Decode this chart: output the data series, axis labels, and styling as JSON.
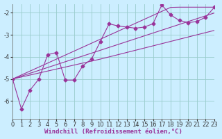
{
  "xlabel": "Windchill (Refroidissement éolien,°C)",
  "background_color": "#cceeff",
  "line_color": "#993399",
  "grid_color": "#99cccc",
  "x_data": [
    0,
    1,
    2,
    3,
    4,
    5,
    6,
    7,
    8,
    9,
    10,
    11,
    12,
    13,
    14,
    15,
    16,
    17,
    18,
    19,
    20,
    21,
    22,
    23
  ],
  "y_scatter": [
    -5.0,
    -6.35,
    -5.5,
    -5.0,
    -3.9,
    -3.8,
    -5.05,
    -5.05,
    -4.4,
    -4.1,
    -3.3,
    -2.5,
    -2.6,
    -2.65,
    -2.7,
    -2.65,
    -2.5,
    -1.65,
    -2.1,
    -2.35,
    -2.45,
    -2.4,
    -2.2,
    -1.75
  ],
  "y_line1": [
    -5.0,
    -4.82,
    -4.64,
    -4.46,
    -4.28,
    -4.1,
    -3.92,
    -3.74,
    -3.56,
    -3.38,
    -3.2,
    -3.02,
    -2.84,
    -2.66,
    -2.48,
    -2.3,
    -2.12,
    -1.94,
    -1.76,
    -1.75,
    -1.75,
    -1.75,
    -1.75,
    -1.75
  ],
  "y_line2": [
    -5.0,
    -4.87,
    -4.74,
    -4.61,
    -4.48,
    -4.35,
    -4.22,
    -4.09,
    -3.96,
    -3.83,
    -3.7,
    -3.57,
    -3.44,
    -3.31,
    -3.18,
    -3.05,
    -2.92,
    -2.79,
    -2.66,
    -2.53,
    -2.4,
    -2.27,
    -2.14,
    -2.01
  ],
  "y_line3": [
    -5.0,
    -4.91,
    -4.82,
    -4.73,
    -4.64,
    -4.55,
    -4.46,
    -4.37,
    -4.28,
    -4.19,
    -4.1,
    -4.0,
    -3.9,
    -3.8,
    -3.7,
    -3.6,
    -3.5,
    -3.4,
    -3.3,
    -3.2,
    -3.1,
    -3.0,
    -2.9,
    -2.8
  ],
  "ylim": [
    -6.8,
    -1.6
  ],
  "xlim": [
    0,
    23
  ],
  "yticks": [
    -6,
    -5,
    -4,
    -3,
    -2
  ],
  "xticks": [
    0,
    1,
    2,
    3,
    4,
    5,
    6,
    7,
    8,
    9,
    10,
    11,
    12,
    13,
    14,
    15,
    16,
    17,
    18,
    19,
    20,
    21,
    22,
    23
  ],
  "marker": "D",
  "markersize": 2.5,
  "linewidth": 0.8,
  "xlabel_fontsize": 6.5,
  "tick_fontsize": 6.0
}
